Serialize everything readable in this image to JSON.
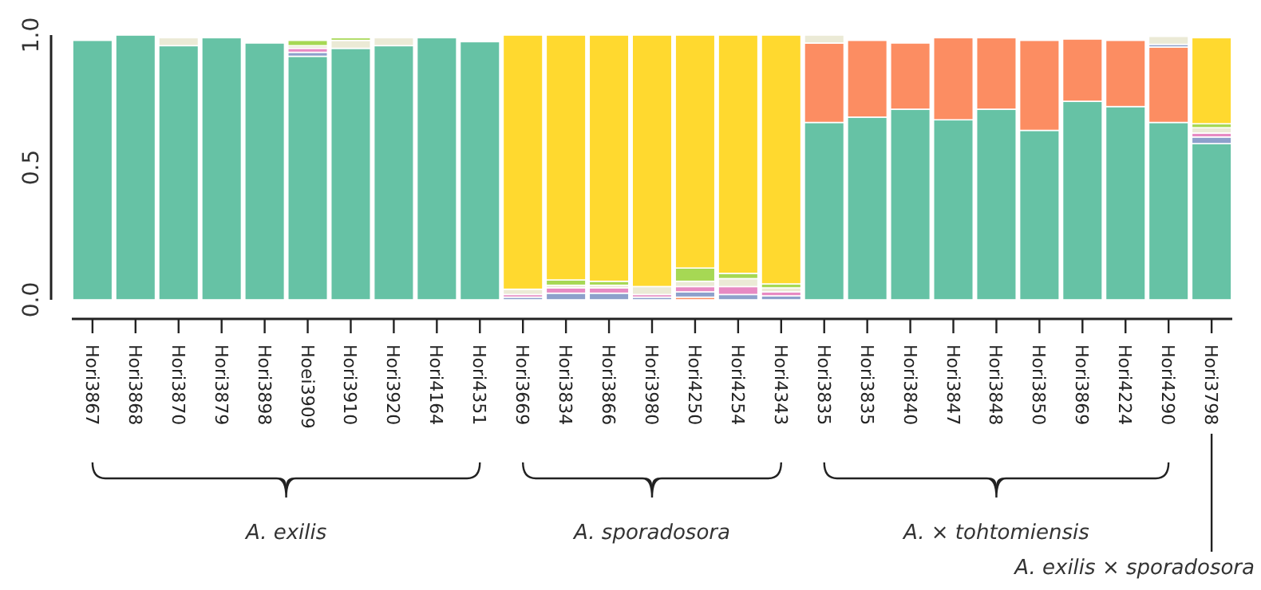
{
  "chart_data": {
    "type": "bar",
    "stacked": true,
    "categories": [
      "Hori3867",
      "Hori3868",
      "Hori3870",
      "Hori3879",
      "Hori3898",
      "Hoei3909",
      "Hori3910",
      "Hori3920",
      "Hori4164",
      "Hori4351",
      "Hori3669",
      "Hori3834",
      "Hori3866",
      "Hori3980",
      "Hori4250",
      "Hori4254",
      "Hori4343",
      "Hori3835",
      "Hori3835",
      "Hori3840",
      "Hori3847",
      "Hori3848",
      "Hori3850",
      "Hori3869",
      "Hori4224",
      "Hori4290",
      "Hori3798"
    ],
    "series": [
      {
        "color": "#66c2a5",
        "values": [
          0.98,
          1.0,
          0.96,
          0.99,
          0.97,
          0.92,
          0.95,
          0.96,
          0.99,
          0.975,
          0,
          0,
          0,
          0,
          0,
          0,
          0,
          0.67,
          0.69,
          0.72,
          0.68,
          0.72,
          0.64,
          0.75,
          0.73,
          0.67,
          0.59
        ]
      },
      {
        "color": "#fc8d62",
        "values": [
          0,
          0,
          0,
          0,
          0,
          0,
          0,
          0,
          0,
          0,
          0,
          0,
          0,
          0,
          0.01,
          0,
          0,
          0.3,
          0.29,
          0.25,
          0.31,
          0.27,
          0.34,
          0.235,
          0.25,
          0.285,
          0
        ]
      },
      {
        "color": "#8da0cb",
        "values": [
          0,
          0,
          0,
          0,
          0,
          0.015,
          0,
          0,
          0,
          0,
          0.01,
          0.025,
          0.025,
          0.01,
          0.02,
          0.02,
          0.015,
          0,
          0,
          0,
          0,
          0,
          0,
          0,
          0,
          0.01,
          0.025
        ]
      },
      {
        "color": "#e78ac3",
        "values": [
          0,
          0,
          0,
          0,
          0,
          0.015,
          0,
          0,
          0,
          0,
          0.01,
          0.02,
          0.02,
          0.01,
          0.02,
          0.03,
          0.015,
          0,
          0,
          0,
          0,
          0,
          0,
          0,
          0,
          0,
          0.015
        ]
      },
      {
        "color": "#ebead6",
        "values": [
          0,
          0,
          0.03,
          0,
          0,
          0.01,
          0.03,
          0.03,
          0,
          0,
          0.02,
          0.01,
          0.01,
          0.03,
          0.02,
          0.03,
          0.015,
          0.03,
          0,
          0,
          0,
          0,
          0,
          0,
          0,
          0.03,
          0.02
        ]
      },
      {
        "color": "#a6d854",
        "values": [
          0,
          0,
          0,
          0,
          0,
          0.02,
          0.01,
          0,
          0,
          0,
          0,
          0.02,
          0.015,
          0,
          0.05,
          0.02,
          0.015,
          0,
          0,
          0,
          0,
          0,
          0,
          0,
          0,
          0,
          0.015
        ]
      },
      {
        "color": "#ffd92f",
        "values": [
          0,
          0,
          0,
          0,
          0,
          0,
          0,
          0,
          0,
          0,
          0.96,
          0.925,
          0.93,
          0.95,
          0.88,
          0.9,
          0.94,
          0,
          0,
          0,
          0,
          0,
          0,
          0,
          0,
          0,
          0.325
        ]
      }
    ],
    "ylim": [
      0,
      1
    ],
    "yticks": [
      {
        "value": 0,
        "label": "0.0"
      },
      {
        "value": 0.5,
        "label": "0.5"
      },
      {
        "value": 1,
        "label": "1.0"
      }
    ],
    "annotations": [
      "A. exilis",
      "A. sporadosora",
      "A. × tohtomiensis",
      "A. exilis × sporadosora"
    ]
  }
}
